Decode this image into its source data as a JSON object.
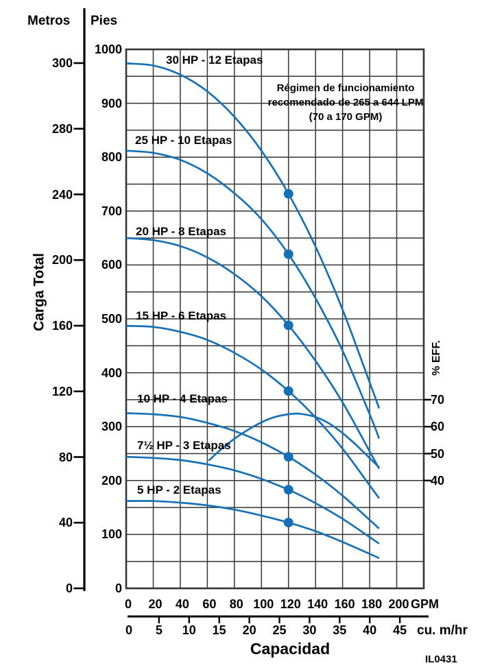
{
  "units_header": {
    "metros": "Metros",
    "pies": "Pies"
  },
  "y_title": "Carga Total",
  "x_title": "Capacidad",
  "figure_id": "IL0431",
  "annotation": {
    "lines": [
      "Régimen de funcionamiento",
      "recomendado de 265 a 644 LPM",
      "(70 a 170 GPM)"
    ]
  },
  "metros_axis": {
    "ticks": [
      300,
      280,
      240,
      200,
      160,
      120,
      80,
      40,
      0
    ]
  },
  "pies_axis": {
    "ticks": [
      1000,
      900,
      800,
      700,
      600,
      500,
      400,
      300,
      200,
      100,
      0
    ]
  },
  "gpm_axis": {
    "ticks": [
      0,
      20,
      40,
      60,
      80,
      100,
      120,
      140,
      160,
      180,
      200
    ],
    "unit": "GPM"
  },
  "cu_axis": {
    "ticks": [
      0,
      5,
      10,
      15,
      20,
      25,
      30,
      35,
      40,
      45
    ],
    "unit": "cu. m/hr"
  },
  "eff_axis": {
    "title": "% EFF.",
    "ticks": [
      70,
      60,
      50,
      40
    ]
  },
  "colors": {
    "curve_blue": "#1570b5",
    "grid": "#353535",
    "axis_black": "#000000",
    "text": "#000000",
    "background": "#ffffff"
  },
  "chart_data": {
    "type": "line",
    "title": "",
    "xlabel": "Capacidad",
    "ylabel": "Carga Total",
    "x_units": [
      "GPM",
      "cu. m/hr"
    ],
    "y_units": [
      "Pies",
      "Metros"
    ],
    "x_range_gpm": [
      0,
      220
    ],
    "y_range_ft": [
      0,
      1000
    ],
    "grid": true,
    "grid_step_gpm": 20,
    "grid_step_ft": 50,
    "x_gpm": [
      0,
      20,
      40,
      60,
      80,
      100,
      120,
      140,
      160,
      180,
      187
    ],
    "series": [
      {
        "label": "30 HP - 12 Etapas",
        "hp": "30 HP",
        "stages": 12,
        "head_ft": [
          974,
          970,
          953,
          922,
          875,
          812,
          732,
          634,
          517,
          382,
          334
        ]
      },
      {
        "label": "25 HP - 10 Etapas",
        "hp": "25 HP",
        "stages": 10,
        "head_ft": [
          812,
          808,
          795,
          770,
          733,
          685,
          620,
          538,
          441,
          323,
          278
        ]
      },
      {
        "label": "20 HP - 8 Etapas",
        "hp": "20 HP",
        "stages": 8,
        "head_ft": [
          650,
          646,
          635,
          614,
          583,
          542,
          488,
          422,
          345,
          254,
          222
        ]
      },
      {
        "label": "15 HP - 6 Etapas",
        "hp": "15 HP",
        "stages": 6,
        "head_ft": [
          487,
          485,
          476,
          461,
          437,
          406,
          366,
          317,
          259,
          191,
          167
        ]
      },
      {
        "label": "10 HP - 4 Etapas",
        "hp": "10 HP",
        "stages": 4,
        "head_ft": [
          325,
          323,
          318,
          307,
          292,
          271,
          244,
          211,
          172,
          127,
          111
        ]
      },
      {
        "label": "7½ HP - 3 Etapas",
        "hp": "7½ HP",
        "stages": 3,
        "head_ft": [
          244,
          242,
          238,
          230,
          219,
          203,
          183,
          158,
          129,
          95,
          83
        ]
      },
      {
        "label": "5 HP - 2 Etapas",
        "hp": "5 HP",
        "stages": 2,
        "head_ft": [
          162,
          162,
          159,
          154,
          146,
          135,
          122,
          106,
          86,
          64,
          56
        ]
      }
    ],
    "operating_dots_gpm": 120,
    "efficiency_curve": {
      "axis_label": "% EFF.",
      "points_gpm_eff": [
        [
          61,
          47.4
        ],
        [
          70,
          51.5
        ],
        [
          80,
          55.5
        ],
        [
          90,
          58.8
        ],
        [
          100,
          61.6
        ],
        [
          110,
          63.6
        ],
        [
          120,
          64.6
        ],
        [
          128,
          64.8
        ],
        [
          140,
          63.6
        ],
        [
          150,
          61.2
        ],
        [
          160,
          57.6
        ],
        [
          170,
          53.2
        ],
        [
          180,
          48.3
        ],
        [
          187,
          44.9
        ]
      ]
    }
  }
}
